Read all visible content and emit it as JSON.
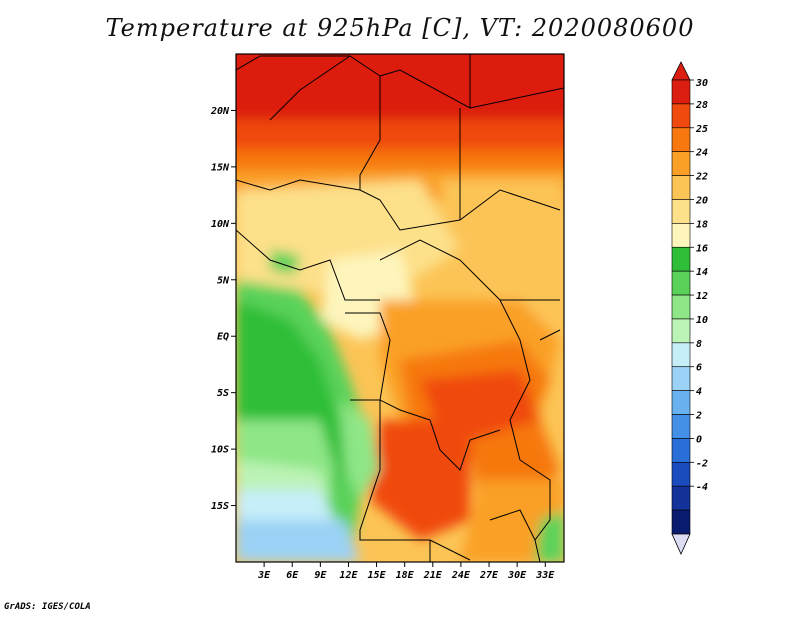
{
  "title": "Temperature at 925hPa [C], VT: 2020080600",
  "credit": "GrADS: IGES/COLA",
  "map": {
    "region": "Central & Southern Africa",
    "lon_range": [
      0,
      35
    ],
    "lat_range": [
      -20,
      25
    ],
    "lon_ticks": [
      "3E",
      "6E",
      "9E",
      "12E",
      "15E",
      "18E",
      "21E",
      "24E",
      "27E",
      "30E",
      "33E"
    ],
    "lat_ticks": [
      "20N",
      "15N",
      "10N",
      "5N",
      "EQ",
      "5S",
      "10S",
      "15S"
    ]
  },
  "colorbar": {
    "levels": [
      "30",
      "28",
      "25",
      "24",
      "22",
      "20",
      "18",
      "16",
      "14",
      "12",
      "10",
      "8",
      "6",
      "4",
      "2",
      "0",
      "-2",
      "-4"
    ],
    "colors": [
      "#dc1e10",
      "#f04a0e",
      "#f6780e",
      "#faa028",
      "#fcc456",
      "#fde08a",
      "#fdf5bc",
      "#2fbe37",
      "#5ad25a",
      "#8ee686",
      "#bcf3b6",
      "#c6eef9",
      "#9bd2f5",
      "#6ab2ef",
      "#4490e6",
      "#2a6ed8",
      "#1a4cbe",
      "#13339a",
      "#0a1c70"
    ],
    "top_color": "#dc1e10",
    "bottom_color": "#dcdcf5"
  }
}
